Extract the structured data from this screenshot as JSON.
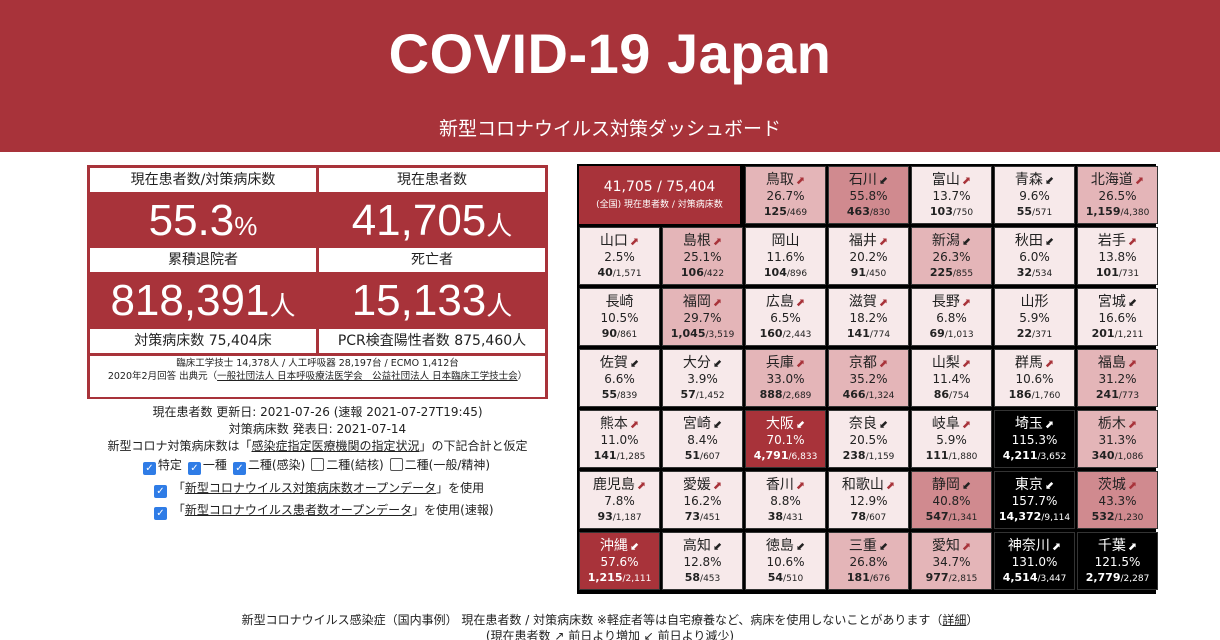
{
  "header": {
    "title": "COVID-19 Japan",
    "subtitle": "新型コロナウイルス対策ダッシュボード"
  },
  "stats": {
    "ratio_label": "現在患者数/対策病床数",
    "ratio_value": "55.3",
    "ratio_unit": "%",
    "patients_label": "現在患者数",
    "patients_value": "41,705",
    "person_unit": "人",
    "discharged_label": "累積退院者",
    "discharged_value": "818,391",
    "deaths_label": "死亡者",
    "deaths_value": "15,133",
    "beds_label": "対策病床数 75,404床",
    "pcr_label": "PCR検査陽性者数 875,460人",
    "note1": "臨床工学技士 14,378人 / 人工呼吸器 28,197台 / ECMO 1,412台",
    "note2": "2020年2月回答 出典元（",
    "note2_link": "一般社団法人 日本呼吸療法医学会　公益社団法人 日本臨床工学技士会",
    "note2_end": "）"
  },
  "info": {
    "line1": "現在患者数 更新日: 2021-07-26 (速報 2021-07-27T19:45)",
    "line2": "対策病床数 発表日: 2021-07-14",
    "line3_pre": "新型コロナ対策病床数は「",
    "line3_link": "感染症指定医療機関の指定状況",
    "line3_post": "」の下記合計と仮定",
    "checks": [
      {
        "label": "特定",
        "checked": true
      },
      {
        "label": "一種",
        "checked": true
      },
      {
        "label": "二種(感染)",
        "checked": true
      },
      {
        "label": "二種(結核)",
        "checked": false
      },
      {
        "label": "二種(一般/精神)",
        "checked": false
      }
    ],
    "od1_pre": "「",
    "od1_link": "新型コロナウイルス対策病床数オープンデータ",
    "od1_post": "」を使用",
    "od2_pre": "「",
    "od2_link": "新型コロナウイルス患者数オープンデータ",
    "od2_post": "」を使用(速報)"
  },
  "summary": {
    "value": "41,705 / 75,404",
    "label": "(全国) 現在患者数 / 対策病床数"
  },
  "prefectures": [
    {
      "name": "鳥取",
      "trend": "up",
      "pct": "26.7%",
      "cur": "125",
      "beds": "469",
      "row": 0,
      "col": 2,
      "level": 1
    },
    {
      "name": "石川",
      "trend": "down",
      "pct": "55.8%",
      "cur": "463",
      "beds": "830",
      "row": 0,
      "col": 3,
      "level": 2
    },
    {
      "name": "富山",
      "trend": "up",
      "pct": "13.7%",
      "cur": "103",
      "beds": "750",
      "row": 0,
      "col": 4,
      "level": 0
    },
    {
      "name": "青森",
      "trend": "down",
      "pct": "9.6%",
      "cur": "55",
      "beds": "571",
      "row": 0,
      "col": 5,
      "level": 0
    },
    {
      "name": "北海道",
      "trend": "up",
      "pct": "26.5%",
      "cur": "1,159",
      "beds": "4,380",
      "row": 0,
      "col": 6,
      "level": 1
    },
    {
      "name": "山口",
      "trend": "up",
      "pct": "2.5%",
      "cur": "40",
      "beds": "1,571",
      "row": 1,
      "col": 0,
      "level": 0
    },
    {
      "name": "島根",
      "trend": "up",
      "pct": "25.1%",
      "cur": "106",
      "beds": "422",
      "row": 1,
      "col": 1,
      "level": 1
    },
    {
      "name": "岡山",
      "trend": "",
      "pct": "11.6%",
      "cur": "104",
      "beds": "896",
      "row": 1,
      "col": 2,
      "level": 0
    },
    {
      "name": "福井",
      "trend": "up",
      "pct": "20.2%",
      "cur": "91",
      "beds": "450",
      "row": 1,
      "col": 3,
      "level": 0
    },
    {
      "name": "新潟",
      "trend": "down",
      "pct": "26.3%",
      "cur": "225",
      "beds": "855",
      "row": 1,
      "col": 4,
      "level": 1
    },
    {
      "name": "秋田",
      "trend": "down",
      "pct": "6.0%",
      "cur": "32",
      "beds": "534",
      "row": 1,
      "col": 5,
      "level": 0
    },
    {
      "name": "岩手",
      "trend": "up",
      "pct": "13.8%",
      "cur": "101",
      "beds": "731",
      "row": 1,
      "col": 6,
      "level": 0
    },
    {
      "name": "長崎",
      "trend": "",
      "pct": "10.5%",
      "cur": "90",
      "beds": "861",
      "row": 2,
      "col": 0,
      "level": 0
    },
    {
      "name": "福岡",
      "trend": "up",
      "pct": "29.7%",
      "cur": "1,045",
      "beds": "3,519",
      "row": 2,
      "col": 1,
      "level": 1
    },
    {
      "name": "広島",
      "trend": "up",
      "pct": "6.5%",
      "cur": "160",
      "beds": "2,443",
      "row": 2,
      "col": 2,
      "level": 0
    },
    {
      "name": "滋賀",
      "trend": "up",
      "pct": "18.2%",
      "cur": "141",
      "beds": "774",
      "row": 2,
      "col": 3,
      "level": 0
    },
    {
      "name": "長野",
      "trend": "up",
      "pct": "6.8%",
      "cur": "69",
      "beds": "1,013",
      "row": 2,
      "col": 4,
      "level": 0
    },
    {
      "name": "山形",
      "trend": "",
      "pct": "5.9%",
      "cur": "22",
      "beds": "371",
      "row": 2,
      "col": 5,
      "level": 0
    },
    {
      "name": "宮城",
      "trend": "down",
      "pct": "16.6%",
      "cur": "201",
      "beds": "1,211",
      "row": 2,
      "col": 6,
      "level": 0
    },
    {
      "name": "佐賀",
      "trend": "down",
      "pct": "6.6%",
      "cur": "55",
      "beds": "839",
      "row": 3,
      "col": 0,
      "level": 0
    },
    {
      "name": "大分",
      "trend": "down",
      "pct": "3.9%",
      "cur": "57",
      "beds": "1,452",
      "row": 3,
      "col": 1,
      "level": 0
    },
    {
      "name": "兵庫",
      "trend": "up",
      "pct": "33.0%",
      "cur": "888",
      "beds": "2,689",
      "row": 3,
      "col": 2,
      "level": 1
    },
    {
      "name": "京都",
      "trend": "up",
      "pct": "35.2%",
      "cur": "466",
      "beds": "1,324",
      "row": 3,
      "col": 3,
      "level": 1
    },
    {
      "name": "山梨",
      "trend": "up",
      "pct": "11.4%",
      "cur": "86",
      "beds": "754",
      "row": 3,
      "col": 4,
      "level": 0
    },
    {
      "name": "群馬",
      "trend": "up",
      "pct": "10.6%",
      "cur": "186",
      "beds": "1,760",
      "row": 3,
      "col": 5,
      "level": 0
    },
    {
      "name": "福島",
      "trend": "up",
      "pct": "31.2%",
      "cur": "241",
      "beds": "773",
      "row": 3,
      "col": 6,
      "level": 1
    },
    {
      "name": "熊本",
      "trend": "up",
      "pct": "11.0%",
      "cur": "141",
      "beds": "1,285",
      "row": 4,
      "col": 0,
      "level": 0
    },
    {
      "name": "宮崎",
      "trend": "down",
      "pct": "8.4%",
      "cur": "51",
      "beds": "607",
      "row": 4,
      "col": 1,
      "level": 0
    },
    {
      "name": "大阪",
      "trend": "down",
      "pct": "70.1%",
      "cur": "4,791",
      "beds": "6,833",
      "row": 4,
      "col": 2,
      "level": 3
    },
    {
      "name": "奈良",
      "trend": "down",
      "pct": "20.5%",
      "cur": "238",
      "beds": "1,159",
      "row": 4,
      "col": 3,
      "level": 0
    },
    {
      "name": "岐阜",
      "trend": "up",
      "pct": "5.9%",
      "cur": "111",
      "beds": "1,880",
      "row": 4,
      "col": 4,
      "level": 0
    },
    {
      "name": "埼玉",
      "trend": "up",
      "pct": "115.3%",
      "cur": "4,211",
      "beds": "3,652",
      "row": 4,
      "col": 5,
      "level": 4
    },
    {
      "name": "栃木",
      "trend": "up",
      "pct": "31.3%",
      "cur": "340",
      "beds": "1,086",
      "row": 4,
      "col": 6,
      "level": 1
    },
    {
      "name": "鹿児島",
      "trend": "up",
      "pct": "7.8%",
      "cur": "93",
      "beds": "1,187",
      "row": 5,
      "col": 0,
      "level": 0
    },
    {
      "name": "愛媛",
      "trend": "up",
      "pct": "16.2%",
      "cur": "73",
      "beds": "451",
      "row": 5,
      "col": 1,
      "level": 0
    },
    {
      "name": "香川",
      "trend": "up",
      "pct": "8.8%",
      "cur": "38",
      "beds": "431",
      "row": 5,
      "col": 2,
      "level": 0
    },
    {
      "name": "和歌山",
      "trend": "up",
      "pct": "12.9%",
      "cur": "78",
      "beds": "607",
      "row": 5,
      "col": 3,
      "level": 0
    },
    {
      "name": "静岡",
      "trend": "down",
      "pct": "40.8%",
      "cur": "547",
      "beds": "1,341",
      "row": 5,
      "col": 4,
      "level": 2
    },
    {
      "name": "東京",
      "trend": "down",
      "pct": "157.7%",
      "cur": "14,372",
      "beds": "9,114",
      "row": 5,
      "col": 5,
      "level": 4
    },
    {
      "name": "茨城",
      "trend": "up",
      "pct": "43.3%",
      "cur": "532",
      "beds": "1,230",
      "row": 5,
      "col": 6,
      "level": 2
    },
    {
      "name": "沖縄",
      "trend": "down",
      "pct": "57.6%",
      "cur": "1,215",
      "beds": "2,111",
      "row": 6,
      "col": 0,
      "level": 3
    },
    {
      "name": "高知",
      "trend": "down",
      "pct": "12.8%",
      "cur": "58",
      "beds": "453",
      "row": 6,
      "col": 1,
      "level": 0
    },
    {
      "name": "徳島",
      "trend": "down",
      "pct": "10.6%",
      "cur": "54",
      "beds": "510",
      "row": 6,
      "col": 2,
      "level": 0
    },
    {
      "name": "三重",
      "trend": "down",
      "pct": "26.8%",
      "cur": "181",
      "beds": "676",
      "row": 6,
      "col": 3,
      "level": 1
    },
    {
      "name": "愛知",
      "trend": "up",
      "pct": "34.7%",
      "cur": "977",
      "beds": "2,815",
      "row": 6,
      "col": 4,
      "level": 1
    },
    {
      "name": "神奈川",
      "trend": "up",
      "pct": "131.0%",
      "cur": "4,514",
      "beds": "3,447",
      "row": 6,
      "col": 5,
      "level": 4
    },
    {
      "name": "千葉",
      "trend": "up",
      "pct": "121.5%",
      "cur": "2,779",
      "beds": "2,287",
      "row": 6,
      "col": 6,
      "level": 4
    }
  ],
  "colors": {
    "brand": "#a8333a",
    "level0": "#f7e9ea",
    "level1": "#e4b5b8",
    "level2": "#d08a8f",
    "level3": "#a8333a",
    "level4": "#000000"
  },
  "footer": {
    "line1_pre": "新型コロナウイルス感染症（国内事例） 現在患者数 / 対策病床数 ※軽症者等は自宅療養など、病床を使用しないことがあります（",
    "line1_link": "詳細",
    "line1_post": "）",
    "line2": "(現在患者数 ↗ 前日より増加 ↙ 前日より減少)"
  }
}
